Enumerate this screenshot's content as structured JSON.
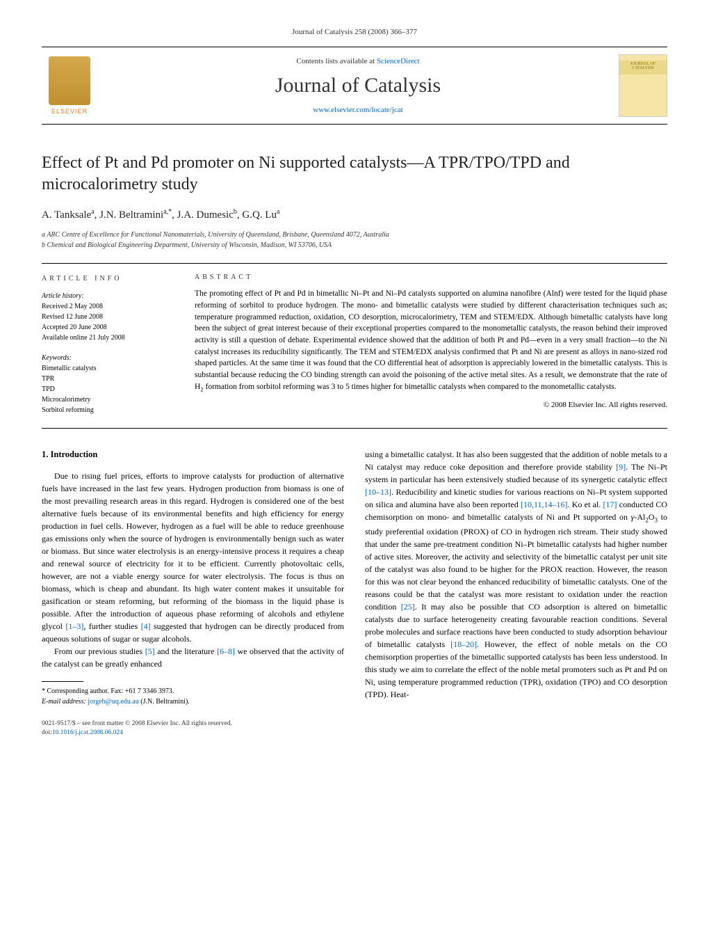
{
  "journal_ref": "Journal of Catalysis 258 (2008) 366–377",
  "masthead": {
    "contents_prefix": "Contents lists available at ",
    "contents_link": "ScienceDirect",
    "journal_name": "Journal of Catalysis",
    "url": "www.elsevier.com/locate/jcat",
    "publisher": "ELSEVIER",
    "cover_label": "JOURNAL OF CATALYSIS"
  },
  "title": "Effect of Pt and Pd promoter on Ni supported catalysts—A TPR/TPO/TPD and microcalorimetry study",
  "authors_html": "A. Tanksale<sup>a</sup>, J.N. Beltramini<sup>a,*</sup>, J.A. Dumesic<sup>b</sup>, G.Q. Lu<sup>a</sup>",
  "affiliations": [
    "a ARC Centre of Excellence for Functional Nanomaterials, University of Queensland, Brisbane, Queensland 4072, Australia",
    "b Chemical and Biological Engineering Department, University of Wisconsin, Madison, WI 53706, USA"
  ],
  "info": {
    "heading": "ARTICLE INFO",
    "history_label": "Article history:",
    "history": [
      "Received 2 May 2008",
      "Revised 12 June 2008",
      "Accepted 20 June 2008",
      "Available online 21 July 2008"
    ],
    "keywords_label": "Keywords:",
    "keywords": [
      "Bimetallic catalysts",
      "TPR",
      "TPD",
      "Microcalorimetry",
      "Sorbitol reforming"
    ]
  },
  "abstract": {
    "heading": "ABSTRACT",
    "text": "The promoting effect of Pt and Pd in bimetallic Ni–Pt and Ni–Pd catalysts supported on alumina nanofibre (Alnf) were tested for the liquid phase reforming of sorbitol to produce hydrogen. The mono- and bimetallic catalysts were studied by different characterisation techniques such as; temperature programmed reduction, oxidation, CO desorption, microcalorimetry, TEM and STEM/EDX. Although bimetallic catalysts have long been the subject of great interest because of their exceptional properties compared to the monometallic catalysts, the reason behind their improved activity is still a question of debate. Experimental evidence showed that the addition of both Pt and Pd—even in a very small fraction—to the Ni catalyst increases its reducibility significantly. The TEM and STEM/EDX analysis confirmed that Pt and Ni are present as alloys in nano-sized rod shaped particles. At the same time it was found that the CO differential heat of adsorption is appreciably lowered in the bimetallic catalysts. This is substantial because reducing the CO binding strength can avoid the poisoning of the active metal sites. As a result, we demonstrate that the rate of H2 formation from sorbitol reforming was 3 to 5 times higher for bimetallic catalysts when compared to the monometallic catalysts.",
    "copyright": "© 2008 Elsevier Inc. All rights reserved."
  },
  "section1": {
    "heading": "1. Introduction",
    "para1_pre": "Due to rising fuel prices, efforts to improve catalysts for production of alternative fuels have increased in the last few years. Hydrogen production from biomass is one of the most prevailing research areas in this regard. Hydrogen is considered one of the best alternative fuels because of its environmental benefits and high efficiency for energy production in fuel cells. However, hydrogen as a fuel will be able to reduce greenhouse gas emissions only when the source of hydrogen is environmentally benign such as water or biomass. But since water electrolysis is an energy-intensive process it requires a cheap and renewal source of electricity for it to be efficient. Currently photovoltaic cells, however, are not a viable energy source for water electrolysis. The focus is thus on biomass, which is cheap and abundant. Its high water content makes it unsuitable for gasification or steam reforming, but reforming of the biomass in the liquid phase is possible. After the introduction of aqueous phase reforming of alcohols and ethylene glycol ",
    "ref1": "[1–3]",
    "para1_mid": ", further studies ",
    "ref2": "[4]",
    "para1_post": " suggested that hydrogen can be directly produced from aqueous solutions of sugar or sugar alcohols.",
    "para2_pre": "From our previous studies ",
    "ref3": "[5]",
    "para2_mid": " and the literature ",
    "ref4": "[6–8]",
    "para2_post": " we observed that the activity of the catalyst can be greatly enhanced",
    "col2_pre": "using a bimetallic catalyst. It has also been suggested that the addition of noble metals to a Ni catalyst may reduce coke deposition and therefore provide stability ",
    "ref5": "[9]",
    "col2_a": ". The Ni–Pt system in particular has been extensively studied because of its synergetic catalytic effect ",
    "ref6": "[10–13]",
    "col2_b": ". Reducibility and kinetic studies for various reactions on Ni–Pt system supported on silica and alumina have also been reported ",
    "ref7": "[10,11,14–16]",
    "col2_c": ". Ko et al. ",
    "ref8": "[17]",
    "col2_d": " conducted CO chemisorption on mono- and bimetallic catalysts of Ni and Pt supported on γ-Al2O3 to study preferential oxidation (PROX) of CO in hydrogen rich stream. Their study showed that under the same pre-treatment condition Ni–Pt bimetallic catalysts had higher number of active sites. Moreover, the activity and selectivity of the bimetallic catalyst per unit site of the catalyst was also found to be higher for the PROX reaction. However, the reason for this was not clear beyond the enhanced reducibility of bimetallic catalysts. One of the reasons could be that the catalyst was more resistant to oxidation under the reaction condition ",
    "ref9": "[25]",
    "col2_e": ". It may also be possible that CO adsorption is altered on bimetallic catalysts due to surface heterogeneity creating favourable reaction conditions. Several probe molecules and surface reactions have been conducted to study adsorption behaviour of bimetallic catalysts ",
    "ref10": "[18–20]",
    "col2_f": ". However, the effect of noble metals on the CO chemisorption properties of the bimetallic supported catalysts has been less understood. In this study we aim to correlate the effect of the noble metal promoters such as Pt and Pd on Ni, using temperature programmed reduction (TPR), oxidation (TPO) and CO desorption (TPD). Heat-"
  },
  "footnotes": {
    "corr": "* Corresponding author. Fax: +61 7 3346 3973.",
    "email_label": "E-mail address: ",
    "email": "jorgeb@uq.edu.au",
    "email_person": " (J.N. Beltramini)."
  },
  "footer": {
    "left": "0021-9517/$ – see front matter © 2008 Elsevier Inc. All rights reserved.",
    "doi_label": "doi:",
    "doi": "10.1016/j.jcat.2008.06.024"
  }
}
